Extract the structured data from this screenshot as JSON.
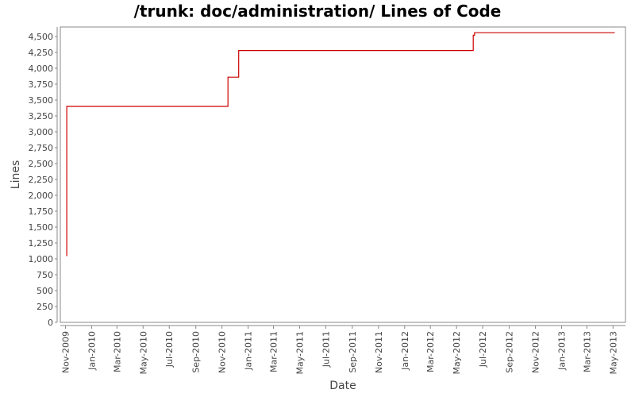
{
  "chart_data": {
    "type": "line",
    "step": true,
    "title": "/trunk: doc/administration/ Lines of Code",
    "xlabel": "Date",
    "ylabel": "Lines",
    "ylim": [
      0,
      4650
    ],
    "yticks": [
      0,
      250,
      500,
      750,
      1000,
      1250,
      1500,
      1750,
      2000,
      2250,
      2500,
      2750,
      3000,
      3250,
      3500,
      3750,
      4000,
      4250,
      4500
    ],
    "ytick_labels": [
      "0",
      "250",
      "500",
      "750",
      "1,000",
      "1,250",
      "1,500",
      "1,750",
      "2,000",
      "2,250",
      "2,500",
      "2,750",
      "3,000",
      "3,250",
      "3,500",
      "3,750",
      "4,000",
      "4,250",
      "4,500"
    ],
    "xlim": [
      "2009-10-20",
      "2013-05-30"
    ],
    "xticks": [
      "2009-11-01",
      "2010-01-01",
      "2010-03-01",
      "2010-05-01",
      "2010-07-01",
      "2010-09-01",
      "2010-11-01",
      "2011-01-01",
      "2011-03-01",
      "2011-05-01",
      "2011-07-01",
      "2011-09-01",
      "2011-11-01",
      "2012-01-01",
      "2012-03-01",
      "2012-05-01",
      "2012-07-01",
      "2012-09-01",
      "2012-11-01",
      "2013-01-01",
      "2013-03-01",
      "2013-05-01"
    ],
    "xtick_labels": [
      "Nov-2009",
      "Jan-2010",
      "Mar-2010",
      "May-2010",
      "Jul-2010",
      "Sep-2010",
      "Nov-2010",
      "Jan-2011",
      "Mar-2011",
      "May-2011",
      "Jul-2011",
      "Sep-2011",
      "Nov-2011",
      "Jan-2012",
      "Mar-2012",
      "May-2012",
      "Jul-2012",
      "Sep-2012",
      "Nov-2012",
      "Jan-2013",
      "Mar-2013",
      "May-2013"
    ],
    "grid": false,
    "series_color": "#cc0000",
    "series": [
      {
        "x": [
          "2009-11-03",
          "2009-11-04",
          "2010-11-15",
          "2010-12-10",
          "2012-06-09",
          "2012-06-12",
          "2013-05-05"
        ],
        "values": [
          1050,
          3400,
          3860,
          4280,
          4520,
          4560,
          4560
        ]
      }
    ]
  }
}
